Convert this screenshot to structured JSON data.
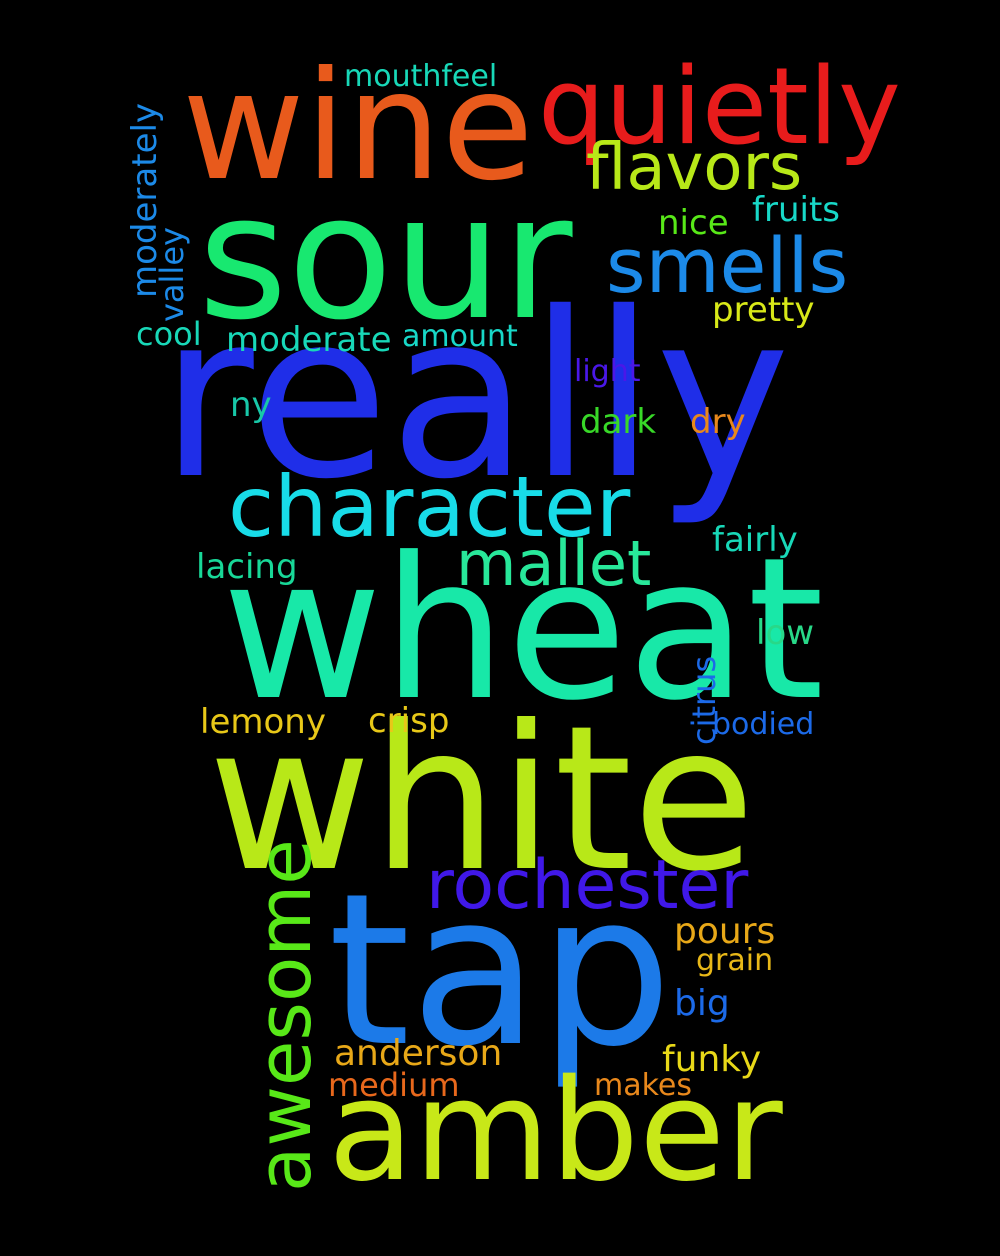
{
  "background": "#000000",
  "words": [
    {
      "text": "really",
      "color": "#1f2ee8"
    },
    {
      "text": "wheat",
      "color": "#18e8a8"
    },
    {
      "text": "white",
      "color": "#b8e818"
    },
    {
      "text": "sour",
      "color": "#18e870"
    },
    {
      "text": "tap",
      "color": "#1c7ae8"
    },
    {
      "text": "wine",
      "color": "#e85a1c"
    },
    {
      "text": "amber",
      "color": "#c8e818"
    },
    {
      "text": "quietly",
      "color": "#e81c1c"
    },
    {
      "text": "character",
      "color": "#18dce8"
    },
    {
      "text": "awesome",
      "color": "#58e818"
    },
    {
      "text": "rochester",
      "color": "#4018e8"
    },
    {
      "text": "smells",
      "color": "#1c8ae8"
    },
    {
      "text": "flavors",
      "color": "#b8e818"
    },
    {
      "text": "mallet",
      "color": "#28e89a"
    },
    {
      "text": "mouthfeel",
      "color": "#18d8b8"
    },
    {
      "text": "nice",
      "color": "#58e818"
    },
    {
      "text": "fruits",
      "color": "#18d8c8"
    },
    {
      "text": "pretty",
      "color": "#d8e818"
    },
    {
      "text": "moderately",
      "color": "#1c8ae8"
    },
    {
      "text": "valley",
      "color": "#1c8ae8"
    },
    {
      "text": "cool",
      "color": "#18d8b8"
    },
    {
      "text": "moderate",
      "color": "#18d8b8"
    },
    {
      "text": "amount",
      "color": "#18d8c8"
    },
    {
      "text": "light",
      "color": "#4a18e8"
    },
    {
      "text": "ny",
      "color": "#18c8a8"
    },
    {
      "text": "dark",
      "color": "#38d828"
    },
    {
      "text": "dry",
      "color": "#e8881c"
    },
    {
      "text": "fairly",
      "color": "#18d8b8"
    },
    {
      "text": "lacing",
      "color": "#18d898"
    },
    {
      "text": "low",
      "color": "#28d888"
    },
    {
      "text": "citrus",
      "color": "#1c6ae8"
    },
    {
      "text": "lemony",
      "color": "#e8c818"
    },
    {
      "text": "crisp",
      "color": "#e8c818"
    },
    {
      "text": "bodied",
      "color": "#1c6ae8"
    },
    {
      "text": "pours",
      "color": "#e8a818"
    },
    {
      "text": "grain",
      "color": "#e8b818"
    },
    {
      "text": "big",
      "color": "#1c6ae8"
    },
    {
      "text": "anderson",
      "color": "#e8a818"
    },
    {
      "text": "funky",
      "color": "#e8d818"
    },
    {
      "text": "medium",
      "color": "#e8681c"
    },
    {
      "text": "makes",
      "color": "#e8881c"
    }
  ]
}
